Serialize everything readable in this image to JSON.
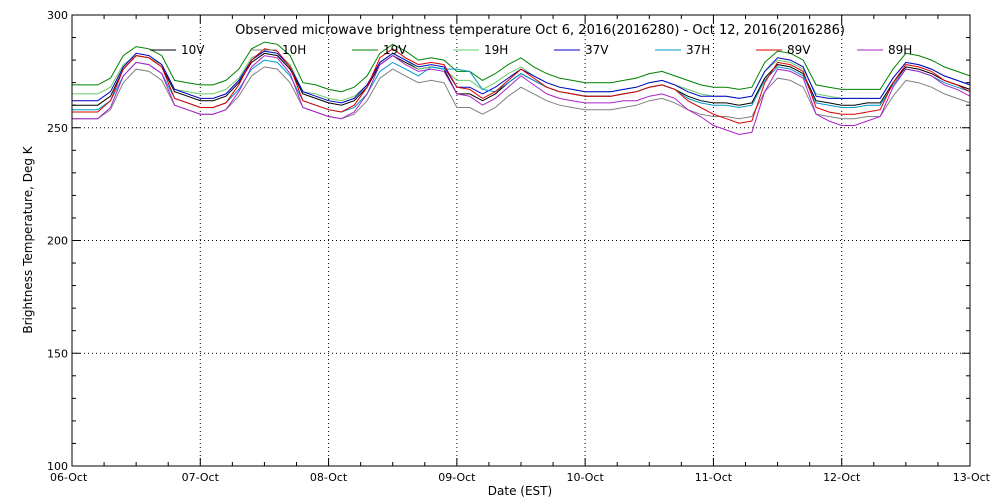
{
  "chart_data": {
    "type": "line",
    "title": "Observed microwave brightness temperature Oct  6, 2016(2016280) - Oct 12, 2016(2016286)",
    "xlabel": "Date (EST)",
    "ylabel": "Brightness Temperature, Deg K",
    "x_ticks": [
      "06-Oct",
      "07-Oct",
      "08-Oct",
      "09-Oct",
      "10-Oct",
      "11-Oct",
      "12-Oct",
      "13-Oct"
    ],
    "y_ticks": [
      "100",
      "150",
      "200",
      "250",
      "300"
    ],
    "xlim": [
      0,
      7
    ],
    "ylim": [
      100,
      300
    ],
    "grid": true,
    "legend_position": "top",
    "series": [
      {
        "name": "10V",
        "color": "#000000",
        "x": [
          0,
          0.1,
          0.2,
          0.3,
          0.4,
          0.5,
          0.6,
          0.7,
          0.8,
          0.9,
          1.0,
          1.1,
          1.2,
          1.3,
          1.4,
          1.5,
          1.6,
          1.7,
          1.8,
          1.9,
          2.0,
          2.1,
          2.2,
          2.3,
          2.4,
          2.5,
          2.6,
          2.7,
          2.8,
          2.9,
          3.0,
          3.1,
          3.2,
          3.3,
          3.4,
          3.5,
          3.6,
          3.7,
          3.8,
          3.9,
          4.0,
          4.1,
          4.2,
          4.3,
          4.4,
          4.5,
          4.6,
          4.7,
          4.8,
          4.9,
          5.0,
          5.1,
          5.2,
          5.3,
          5.4,
          5.5,
          5.6,
          5.7,
          5.8,
          5.9,
          6.0,
          6.1,
          6.2,
          6.3,
          6.4,
          6.5,
          6.6,
          6.7,
          6.8,
          6.9,
          7.0
        ],
        "values": [
          260,
          260,
          260,
          264,
          276,
          282,
          281,
          277,
          266,
          264,
          262,
          262,
          264,
          270,
          279,
          283,
          282,
          276,
          265,
          263,
          261,
          260,
          262,
          268,
          278,
          282,
          279,
          276,
          277,
          276,
          265,
          265,
          262,
          265,
          270,
          274,
          271,
          268,
          266,
          265,
          264,
          264,
          264,
          265,
          266,
          268,
          269,
          267,
          264,
          262,
          261,
          261,
          260,
          261,
          272,
          278,
          277,
          274,
          262,
          261,
          260,
          260,
          261,
          261,
          270,
          277,
          276,
          274,
          271,
          269,
          267
        ]
      },
      {
        "name": "10H",
        "color": "#808080",
        "x": [
          0,
          0.1,
          0.2,
          0.3,
          0.4,
          0.5,
          0.6,
          0.7,
          0.8,
          0.9,
          1.0,
          1.1,
          1.2,
          1.3,
          1.4,
          1.5,
          1.6,
          1.7,
          1.8,
          1.9,
          2.0,
          2.1,
          2.2,
          2.3,
          2.4,
          2.5,
          2.6,
          2.7,
          2.8,
          2.9,
          3.0,
          3.1,
          3.2,
          3.3,
          3.4,
          3.5,
          3.6,
          3.7,
          3.8,
          3.9,
          4.0,
          4.1,
          4.2,
          4.3,
          4.4,
          4.5,
          4.6,
          4.7,
          4.8,
          4.9,
          5.0,
          5.1,
          5.2,
          5.3,
          5.4,
          5.5,
          5.6,
          5.7,
          5.8,
          5.9,
          6.0,
          6.1,
          6.2,
          6.3,
          6.4,
          6.5,
          6.6,
          6.7,
          6.8,
          6.9,
          7.0
        ],
        "values": [
          254,
          254,
          254,
          258,
          270,
          276,
          275,
          271,
          260,
          258,
          256,
          256,
          258,
          264,
          273,
          277,
          276,
          270,
          259,
          257,
          255,
          254,
          256,
          262,
          272,
          276,
          273,
          270,
          271,
          270,
          259,
          259,
          256,
          259,
          264,
          268,
          265,
          262,
          260,
          259,
          258,
          258,
          258,
          259,
          260,
          262,
          263,
          261,
          258,
          256,
          255,
          255,
          254,
          255,
          266,
          272,
          271,
          268,
          256,
          255,
          254,
          254,
          255,
          255,
          264,
          271,
          270,
          268,
          265,
          263,
          261
        ]
      },
      {
        "name": "19V",
        "color": "#008000",
        "x": [
          0,
          0.1,
          0.2,
          0.3,
          0.4,
          0.5,
          0.6,
          0.7,
          0.8,
          0.9,
          1.0,
          1.1,
          1.2,
          1.3,
          1.4,
          1.5,
          1.6,
          1.7,
          1.8,
          1.9,
          2.0,
          2.1,
          2.2,
          2.3,
          2.4,
          2.5,
          2.6,
          2.7,
          2.8,
          2.9,
          3.0,
          3.1,
          3.2,
          3.3,
          3.4,
          3.5,
          3.6,
          3.7,
          3.8,
          3.9,
          4.0,
          4.1,
          4.2,
          4.3,
          4.4,
          4.5,
          4.6,
          4.7,
          4.8,
          4.9,
          5.0,
          5.1,
          5.2,
          5.3,
          5.4,
          5.5,
          5.6,
          5.7,
          5.8,
          5.9,
          6.0,
          6.1,
          6.2,
          6.3,
          6.4,
          6.5,
          6.6,
          6.7,
          6.8,
          6.9,
          7.0
        ],
        "values": [
          269,
          269,
          269,
          272,
          282,
          286,
          285,
          282,
          271,
          270,
          269,
          269,
          271,
          276,
          285,
          288,
          287,
          282,
          270,
          269,
          267,
          266,
          268,
          273,
          283,
          287,
          284,
          280,
          281,
          280,
          275,
          275,
          271,
          274,
          278,
          281,
          277,
          274,
          272,
          271,
          270,
          270,
          270,
          271,
          272,
          274,
          275,
          273,
          271,
          269,
          268,
          268,
          267,
          268,
          279,
          284,
          283,
          280,
          269,
          268,
          267,
          267,
          267,
          267,
          276,
          283,
          282,
          280,
          277,
          275,
          273
        ]
      },
      {
        "name": "19H",
        "color": "#66cc66",
        "x": [
          0,
          0.1,
          0.2,
          0.3,
          0.4,
          0.5,
          0.6,
          0.7,
          0.8,
          0.9,
          1.0,
          1.1,
          1.2,
          1.3,
          1.4,
          1.5,
          1.6,
          1.7,
          1.8,
          1.9,
          2.0,
          2.1,
          2.2,
          2.3,
          2.4,
          2.5,
          2.6,
          2.7,
          2.8,
          2.9,
          3.0,
          3.1,
          3.2,
          3.3,
          3.4,
          3.5,
          3.6,
          3.7,
          3.8,
          3.9,
          4.0,
          4.1,
          4.2,
          4.3,
          4.4,
          4.5,
          4.6,
          4.7,
          4.8,
          4.9,
          5.0,
          5.1,
          5.2,
          5.3,
          5.4,
          5.5,
          5.6,
          5.7,
          5.8,
          5.9,
          6.0,
          6.1,
          6.2,
          6.3,
          6.4,
          6.5,
          6.6,
          6.7,
          6.8,
          6.9,
          7.0
        ],
        "values": [
          265,
          265,
          265,
          268,
          278,
          282,
          281,
          278,
          267,
          266,
          265,
          265,
          267,
          272,
          281,
          284,
          283,
          278,
          266,
          265,
          263,
          262,
          264,
          269,
          279,
          283,
          280,
          276,
          277,
          276,
          271,
          271,
          267,
          270,
          274,
          277,
          273,
          270,
          268,
          267,
          266,
          266,
          266,
          267,
          268,
          270,
          271,
          269,
          267,
          265,
          264,
          264,
          263,
          264,
          275,
          280,
          279,
          276,
          265,
          264,
          263,
          263,
          263,
          263,
          272,
          279,
          278,
          276,
          273,
          271,
          269
        ]
      },
      {
        "name": "37V",
        "color": "#0000cc",
        "x": [
          0,
          0.1,
          0.2,
          0.3,
          0.4,
          0.5,
          0.6,
          0.7,
          0.8,
          0.9,
          1.0,
          1.1,
          1.2,
          1.3,
          1.4,
          1.5,
          1.6,
          1.7,
          1.8,
          1.9,
          2.0,
          2.1,
          2.2,
          2.3,
          2.4,
          2.5,
          2.6,
          2.7,
          2.8,
          2.9,
          3.0,
          3.1,
          3.2,
          3.3,
          3.4,
          3.5,
          3.6,
          3.7,
          3.8,
          3.9,
          4.0,
          4.1,
          4.2,
          4.3,
          4.4,
          4.5,
          4.6,
          4.7,
          4.8,
          4.9,
          5.0,
          5.1,
          5.2,
          5.3,
          5.4,
          5.5,
          5.6,
          5.7,
          5.8,
          5.9,
          6.0,
          6.1,
          6.2,
          6.3,
          6.4,
          6.5,
          6.6,
          6.7,
          6.8,
          6.9,
          7.0
        ],
        "values": [
          262,
          262,
          262,
          266,
          277,
          283,
          282,
          278,
          267,
          265,
          263,
          263,
          265,
          271,
          280,
          284,
          283,
          277,
          266,
          264,
          262,
          261,
          263,
          269,
          279,
          283,
          280,
          277,
          278,
          277,
          268,
          268,
          265,
          268,
          272,
          276,
          273,
          270,
          268,
          267,
          266,
          266,
          266,
          267,
          268,
          270,
          271,
          269,
          266,
          264,
          264,
          264,
          263,
          264,
          275,
          281,
          280,
          277,
          264,
          263,
          263,
          263,
          263,
          263,
          272,
          279,
          278,
          276,
          273,
          271,
          269
        ]
      },
      {
        "name": "37H",
        "color": "#0099cc",
        "x": [
          0,
          0.1,
          0.2,
          0.3,
          0.4,
          0.5,
          0.6,
          0.7,
          0.8,
          0.9,
          1.0,
          1.1,
          1.2,
          1.3,
          1.4,
          1.5,
          1.6,
          1.7,
          1.8,
          1.9,
          2.0,
          2.1,
          2.2,
          2.3,
          2.4,
          2.5,
          2.6,
          2.7,
          2.8,
          2.9,
          3.0,
          3.1,
          3.2,
          3.3,
          3.4,
          3.5,
          3.6,
          3.7,
          3.8,
          3.9,
          4.0,
          4.1,
          4.2,
          4.3,
          4.4,
          4.5,
          4.6,
          4.7,
          4.8,
          4.9,
          5.0,
          5.1,
          5.2,
          5.3,
          5.4,
          5.5,
          5.6,
          5.7,
          5.8,
          5.9,
          6.0,
          6.1,
          6.2,
          6.3,
          6.4,
          6.5,
          6.6,
          6.7,
          6.8,
          6.9,
          7.0
        ],
        "values": [
          258,
          258,
          258,
          262,
          273,
          279,
          278,
          274,
          263,
          261,
          259,
          259,
          261,
          267,
          276,
          280,
          279,
          273,
          262,
          260,
          258,
          257,
          259,
          265,
          275,
          279,
          276,
          273,
          277,
          276,
          276,
          275,
          267,
          266,
          270,
          274,
          271,
          268,
          266,
          265,
          264,
          264,
          264,
          265,
          266,
          268,
          269,
          267,
          263,
          261,
          260,
          260,
          259,
          260,
          271,
          277,
          276,
          273,
          261,
          260,
          259,
          259,
          260,
          260,
          269,
          276,
          275,
          273,
          270,
          268,
          266
        ]
      },
      {
        "name": "89V",
        "color": "#dd0000",
        "x": [
          0,
          0.1,
          0.2,
          0.3,
          0.4,
          0.5,
          0.6,
          0.7,
          0.8,
          0.9,
          1.0,
          1.1,
          1.2,
          1.3,
          1.4,
          1.5,
          1.6,
          1.7,
          1.8,
          1.9,
          2.0,
          2.1,
          2.2,
          2.3,
          2.4,
          2.5,
          2.6,
          2.7,
          2.8,
          2.9,
          3.0,
          3.1,
          3.2,
          3.3,
          3.4,
          3.5,
          3.6,
          3.7,
          3.8,
          3.9,
          4.0,
          4.1,
          4.2,
          4.3,
          4.4,
          4.5,
          4.6,
          4.7,
          4.8,
          4.9,
          5.0,
          5.1,
          5.2,
          5.3,
          5.4,
          5.5,
          5.6,
          5.7,
          5.8,
          5.9,
          6.0,
          6.1,
          6.2,
          6.3,
          6.4,
          6.5,
          6.6,
          6.7,
          6.8,
          6.9,
          7.0
        ],
        "values": [
          257,
          257,
          257,
          262,
          276,
          282,
          281,
          277,
          263,
          261,
          259,
          259,
          261,
          269,
          280,
          285,
          284,
          277,
          262,
          260,
          258,
          257,
          260,
          268,
          281,
          285,
          281,
          278,
          279,
          278,
          268,
          267,
          263,
          266,
          271,
          276,
          272,
          268,
          266,
          265,
          264,
          264,
          264,
          265,
          266,
          268,
          269,
          267,
          262,
          259,
          256,
          254,
          252,
          253,
          270,
          279,
          278,
          275,
          259,
          257,
          256,
          256,
          257,
          258,
          270,
          278,
          277,
          275,
          271,
          269,
          266
        ]
      },
      {
        "name": "89H",
        "color": "#aa22cc",
        "x": [
          0,
          0.1,
          0.2,
          0.3,
          0.4,
          0.5,
          0.6,
          0.7,
          0.8,
          0.9,
          1.0,
          1.1,
          1.2,
          1.3,
          1.4,
          1.5,
          1.6,
          1.7,
          1.8,
          1.9,
          2.0,
          2.1,
          2.2,
          2.3,
          2.4,
          2.5,
          2.6,
          2.7,
          2.8,
          2.9,
          3.0,
          3.1,
          3.2,
          3.3,
          3.4,
          3.5,
          3.6,
          3.7,
          3.8,
          3.9,
          4.0,
          4.1,
          4.2,
          4.3,
          4.4,
          4.5,
          4.6,
          4.7,
          4.8,
          4.9,
          5.0,
          5.1,
          5.2,
          5.3,
          5.4,
          5.5,
          5.6,
          5.7,
          5.8,
          5.9,
          6.0,
          6.1,
          6.2,
          6.3,
          6.4,
          6.5,
          6.6,
          6.7,
          6.8,
          6.9,
          7.0
        ],
        "values": [
          254,
          254,
          254,
          259,
          273,
          279,
          278,
          274,
          260,
          258,
          256,
          256,
          258,
          266,
          277,
          282,
          281,
          274,
          259,
          257,
          255,
          254,
          257,
          265,
          278,
          282,
          278,
          275,
          276,
          275,
          265,
          264,
          260,
          263,
          268,
          273,
          269,
          265,
          263,
          262,
          261,
          261,
          261,
          262,
          262,
          264,
          265,
          263,
          258,
          255,
          251,
          249,
          247,
          248,
          266,
          276,
          275,
          272,
          256,
          253,
          251,
          251,
          253,
          255,
          268,
          276,
          275,
          273,
          269,
          267,
          264
        ]
      }
    ]
  }
}
